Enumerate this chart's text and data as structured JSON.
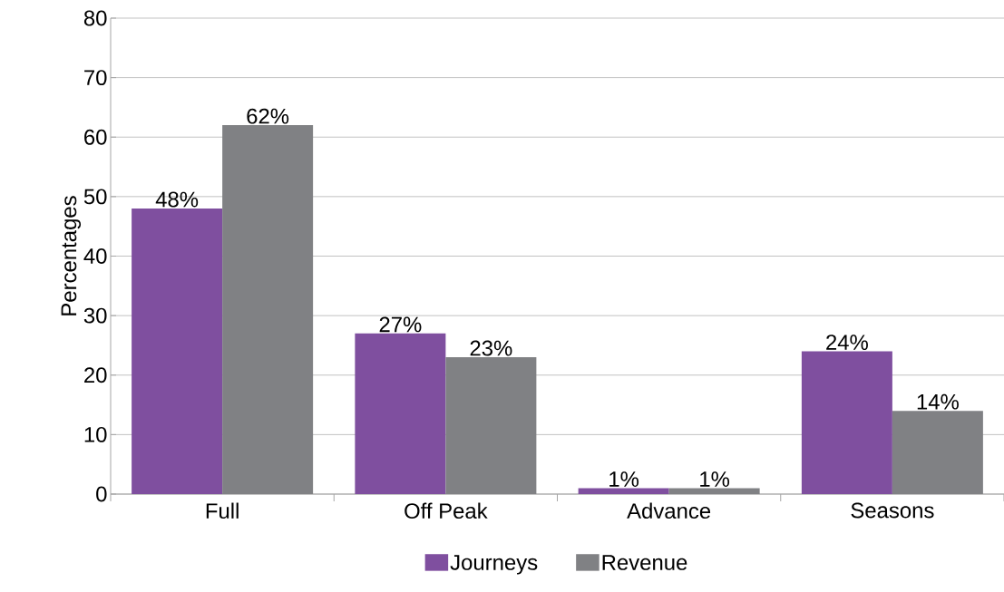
{
  "chart_data": {
    "type": "bar",
    "ylabel": "Percentages",
    "categories": [
      "Full",
      "Off Peak",
      "Advance",
      "Seasons"
    ],
    "series": [
      {
        "name": "Journeys",
        "color": "#7f4f9f",
        "values": [
          48,
          27,
          1,
          24
        ],
        "value_labels": [
          "48%",
          "27%",
          "1%",
          "24%"
        ]
      },
      {
        "name": "Revenue",
        "color": "#808184",
        "values": [
          62,
          23,
          1,
          14
        ],
        "value_labels": [
          "62%",
          "23%",
          "1%",
          "14%"
        ]
      }
    ],
    "ylim": [
      0,
      80
    ],
    "yticks": [
      0,
      10,
      20,
      30,
      40,
      50,
      60,
      70,
      80
    ],
    "grid": "y",
    "legend": "bottom"
  }
}
